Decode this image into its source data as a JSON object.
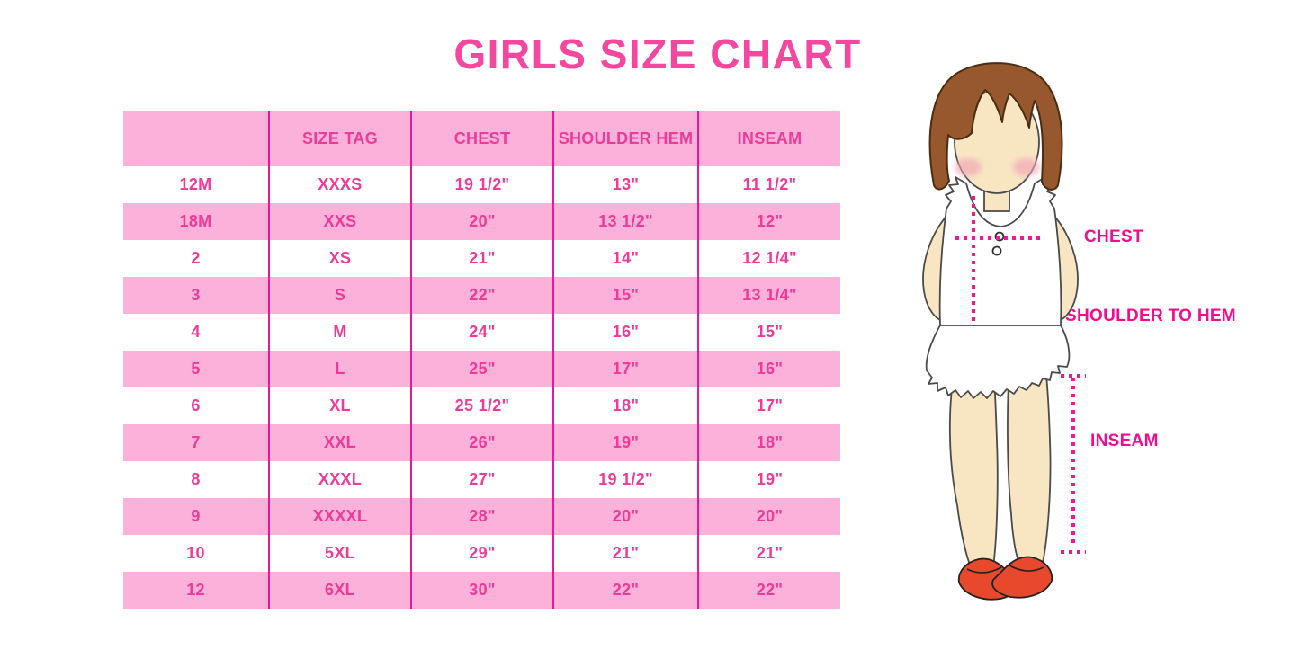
{
  "title": "GIRLS SIZE CHART",
  "chart_data": {
    "type": "table",
    "title": "GIRLS SIZE CHART",
    "columns": [
      "",
      "SIZE TAG",
      "CHEST",
      "SHOULDER HEM",
      "INSEAM"
    ],
    "rows": [
      [
        "12M",
        "XXXS",
        "19 1/2\"",
        "13\"",
        "11 1/2\""
      ],
      [
        "18M",
        "XXS",
        "20\"",
        "13 1/2\"",
        "12\""
      ],
      [
        "2",
        "XS",
        "21\"",
        "14\"",
        "12 1/4\""
      ],
      [
        "3",
        "S",
        "22\"",
        "15\"",
        "13 1/4\""
      ],
      [
        "4",
        "M",
        "24\"",
        "16\"",
        "15\""
      ],
      [
        "5",
        "L",
        "25\"",
        "17\"",
        "16\""
      ],
      [
        "6",
        "XL",
        "25 1/2\"",
        "18\"",
        "17\""
      ],
      [
        "7",
        "XXL",
        "26\"",
        "19\"",
        "18\""
      ],
      [
        "8",
        "XXXL",
        "27\"",
        "19 1/2\"",
        "19\""
      ],
      [
        "9",
        "XXXXL",
        "28\"",
        "20\"",
        "20\""
      ],
      [
        "10",
        "5XL",
        "29\"",
        "21\"",
        "21\""
      ],
      [
        "12",
        "6XL",
        "30\"",
        "22\"",
        "22\""
      ]
    ]
  },
  "diagram": {
    "chest_label": "CHEST",
    "shoulder_to_hem_label": "SHOULDER TO HEM",
    "inseam_label": "INSEAM"
  },
  "colors": {
    "title_pink": "#F4479F",
    "band_pink": "#FBB1D9",
    "cell_text_pink": "#EE3A98",
    "separator_magenta": "#E7189A",
    "label_pink": "#F20D8E",
    "dotted_line_magenta": "#EC1A95",
    "hair_brown": "#98582E",
    "skin_peach": "#F8E6C3",
    "shoe_red": "#E8492C"
  }
}
